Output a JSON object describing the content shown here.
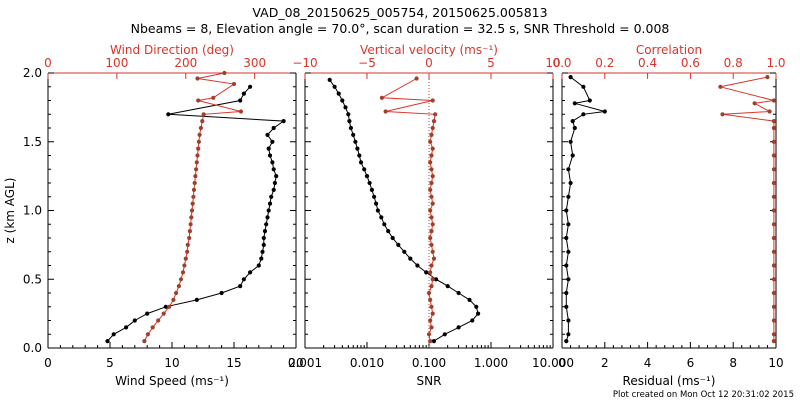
{
  "figure": {
    "title_line1": "VAD_08_20150625_005754, 20150625.005813",
    "title_line2": "Nbeams = 8, Elevation angle = 70.0°, scan duration = 32.5 s, SNR Threshold = 0.008",
    "footer": "Plot created on Mon Oct 12 20:31:02 2015",
    "colors": {
      "primary": "#000000",
      "secondary": "#d9352b",
      "secondary_marker": "#a0402a"
    }
  },
  "chart_data": [
    {
      "type": "line",
      "ylabel": "z (km AGL)",
      "ylim": [
        0,
        2
      ],
      "yticks": [
        "0.0",
        "0.5",
        "1.0",
        "1.5",
        "2.0"
      ],
      "bottom_axis": {
        "label": "Wind Speed (ms⁻¹)",
        "lim": [
          0,
          20
        ],
        "ticks": [
          "0",
          "5",
          "10",
          "15",
          "20"
        ]
      },
      "top_axis": {
        "label": "Wind Direction (deg)",
        "lim": [
          0,
          360
        ],
        "ticks": [
          "0",
          "100",
          "200",
          "300"
        ]
      },
      "series": [
        {
          "axis": "bottom",
          "color": "#000000",
          "z": [
            0.05,
            0.1,
            0.15,
            0.2,
            0.25,
            0.3,
            0.35,
            0.4,
            0.45,
            0.5,
            0.55,
            0.6,
            0.65,
            0.7,
            0.75,
            0.8,
            0.85,
            0.9,
            0.95,
            1.0,
            1.05,
            1.1,
            1.15,
            1.2,
            1.25,
            1.3,
            1.35,
            1.4,
            1.45,
            1.5,
            1.55,
            1.6,
            1.65,
            1.7,
            1.8,
            1.85,
            1.9
          ],
          "x": [
            4.8,
            5.3,
            6.3,
            7.0,
            8.0,
            9.5,
            12.0,
            14.0,
            15.5,
            15.8,
            16.3,
            17.0,
            17.2,
            17.3,
            17.4,
            17.4,
            17.5,
            17.6,
            17.7,
            17.8,
            17.9,
            18.0,
            18.2,
            18.3,
            18.4,
            18.2,
            18.1,
            17.9,
            17.8,
            18.1,
            17.7,
            18.2,
            19.0,
            9.7,
            15.5,
            15.8,
            16.3
          ]
        },
        {
          "axis": "top",
          "color": "#a0402a",
          "z": [
            0.05,
            0.1,
            0.15,
            0.2,
            0.25,
            0.3,
            0.35,
            0.4,
            0.45,
            0.5,
            0.55,
            0.6,
            0.65,
            0.7,
            0.75,
            0.8,
            0.85,
            0.9,
            0.95,
            1.0,
            1.05,
            1.1,
            1.15,
            1.2,
            1.25,
            1.3,
            1.35,
            1.4,
            1.45,
            1.5,
            1.55,
            1.6,
            1.65,
            1.7,
            1.72,
            1.8,
            1.82,
            1.92,
            1.96,
            2.0
          ],
          "x": [
            140,
            145,
            152,
            160,
            168,
            176,
            182,
            186,
            190,
            193,
            196,
            198,
            200,
            202,
            203,
            205,
            206,
            207,
            208,
            209,
            210,
            211,
            212,
            213,
            214,
            215,
            216,
            217,
            218,
            219,
            220,
            222,
            224,
            226,
            280,
            218,
            240,
            270,
            217,
            256
          ]
        }
      ]
    },
    {
      "type": "line",
      "ylim": [
        0,
        2
      ],
      "bottom_axis": {
        "label": "SNR",
        "scale": "log",
        "lim": [
          0.001,
          10
        ],
        "ticks": [
          "0.001",
          "0.010",
          "0.100",
          "1.000",
          "10.000"
        ]
      },
      "top_axis": {
        "label": "Vertical velocity (ms⁻¹)",
        "lim": [
          -10,
          10
        ],
        "ticks": [
          "−10",
          "−5",
          "0",
          "5",
          "10"
        ]
      },
      "series": [
        {
          "axis": "bottom",
          "color": "#000000",
          "z": [
            0.05,
            0.1,
            0.15,
            0.2,
            0.25,
            0.3,
            0.35,
            0.4,
            0.45,
            0.5,
            0.55,
            0.6,
            0.65,
            0.7,
            0.75,
            0.8,
            0.85,
            0.9,
            0.95,
            1.0,
            1.05,
            1.1,
            1.15,
            1.2,
            1.25,
            1.3,
            1.35,
            1.4,
            1.45,
            1.5,
            1.55,
            1.6,
            1.65,
            1.7,
            1.75,
            1.8,
            1.85,
            1.9,
            1.95
          ],
          "x": [
            0.12,
            0.18,
            0.3,
            0.5,
            0.62,
            0.58,
            0.45,
            0.3,
            0.2,
            0.13,
            0.09,
            0.065,
            0.05,
            0.04,
            0.032,
            0.026,
            0.022,
            0.019,
            0.017,
            0.015,
            0.014,
            0.013,
            0.012,
            0.011,
            0.01,
            0.009,
            0.008,
            0.0075,
            0.007,
            0.0065,
            0.006,
            0.0055,
            0.0052,
            0.005,
            0.0045,
            0.004,
            0.0035,
            0.003,
            0.0025
          ]
        },
        {
          "axis": "top",
          "color": "#a0402a",
          "z": [
            0.05,
            0.1,
            0.15,
            0.2,
            0.25,
            0.3,
            0.35,
            0.4,
            0.45,
            0.5,
            0.55,
            0.6,
            0.65,
            0.7,
            0.75,
            0.8,
            0.85,
            0.9,
            0.95,
            1.0,
            1.05,
            1.1,
            1.15,
            1.2,
            1.25,
            1.3,
            1.35,
            1.4,
            1.45,
            1.5,
            1.55,
            1.6,
            1.65,
            1.7,
            1.72,
            1.8,
            1.82,
            1.96
          ],
          "x": [
            0.1,
            0.0,
            0.2,
            0.1,
            0.3,
            0.2,
            0.1,
            0.0,
            0.2,
            0.3,
            0.1,
            0.2,
            0.4,
            0.3,
            0.2,
            0.1,
            0.2,
            0.3,
            0.2,
            0.1,
            0.3,
            0.2,
            0.1,
            0.2,
            0.3,
            0.2,
            0.1,
            0.2,
            0.3,
            0.1,
            0.2,
            0.3,
            0.4,
            0.5,
            -3.5,
            0.3,
            -3.8,
            -1.0
          ]
        }
      ]
    },
    {
      "type": "line",
      "ylim": [
        0,
        2
      ],
      "bottom_axis": {
        "label": "Residual (ms⁻¹)",
        "lim": [
          0,
          10
        ],
        "ticks": [
          "0",
          "2",
          "4",
          "6",
          "8",
          "10"
        ]
      },
      "top_axis": {
        "label": "Correlation",
        "lim": [
          0,
          1
        ],
        "ticks": [
          "0.0",
          "0.2",
          "0.4",
          "0.6",
          "0.8",
          "1.0"
        ]
      },
      "series": [
        {
          "axis": "bottom",
          "color": "#000000",
          "z": [
            0.05,
            0.1,
            0.2,
            0.3,
            0.4,
            0.5,
            0.6,
            0.7,
            0.8,
            0.9,
            1.0,
            1.1,
            1.2,
            1.3,
            1.4,
            1.5,
            1.6,
            1.65,
            1.7,
            1.72,
            1.78,
            1.8,
            1.9,
            1.97
          ],
          "x": [
            0.2,
            0.3,
            0.3,
            0.2,
            0.2,
            0.3,
            0.2,
            0.3,
            0.2,
            0.3,
            0.2,
            0.3,
            0.4,
            0.3,
            0.5,
            0.4,
            0.6,
            0.5,
            1.0,
            2.0,
            0.6,
            1.3,
            1.0,
            0.4
          ]
        },
        {
          "axis": "top",
          "color": "#a0402a",
          "z": [
            0.05,
            0.1,
            0.2,
            0.3,
            0.4,
            0.5,
            0.6,
            0.7,
            0.8,
            0.9,
            1.0,
            1.1,
            1.2,
            1.3,
            1.4,
            1.5,
            1.6,
            1.65,
            1.7,
            1.72,
            1.78,
            1.8,
            1.9,
            1.97
          ],
          "x": [
            0.99,
            0.99,
            0.99,
            0.99,
            0.99,
            0.99,
            0.99,
            0.99,
            0.99,
            0.99,
            0.99,
            0.99,
            0.99,
            0.99,
            0.99,
            0.99,
            0.99,
            0.99,
            0.75,
            0.97,
            0.9,
            0.99,
            0.74,
            0.96
          ]
        }
      ]
    }
  ]
}
